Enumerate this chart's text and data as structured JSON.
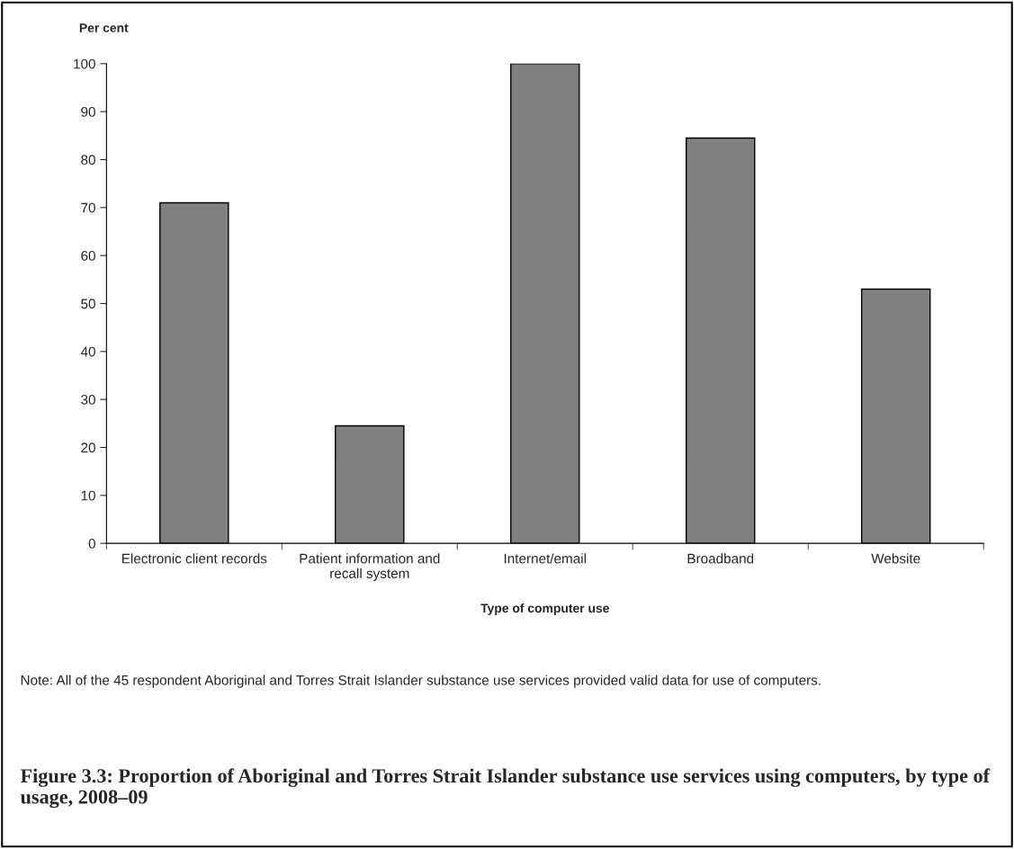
{
  "chart_data": {
    "type": "bar",
    "title": "Figure 3.3: Proportion of Aboriginal and Torres Strait Islander substance use services using computers, by type of usage, 2008–09",
    "xlabel": "Type of computer use",
    "ylabel": "Per cent",
    "categories": [
      "Electronic client records",
      "Patient information and\nrecall system",
      "Internet/email",
      "Broadband",
      "Website"
    ],
    "values": [
      71,
      24.5,
      100,
      84.5,
      53
    ],
    "color": "#808080",
    "ylim": [
      0,
      100
    ],
    "yticks": [
      0,
      10,
      20,
      30,
      40,
      50,
      60,
      70,
      80,
      90,
      100
    ],
    "grid": false,
    "legend": false,
    "annotations": [
      "Note: All of the 45 respondent Aboriginal and Torres Strait Islander substance use services provided valid data for use of computers."
    ]
  }
}
